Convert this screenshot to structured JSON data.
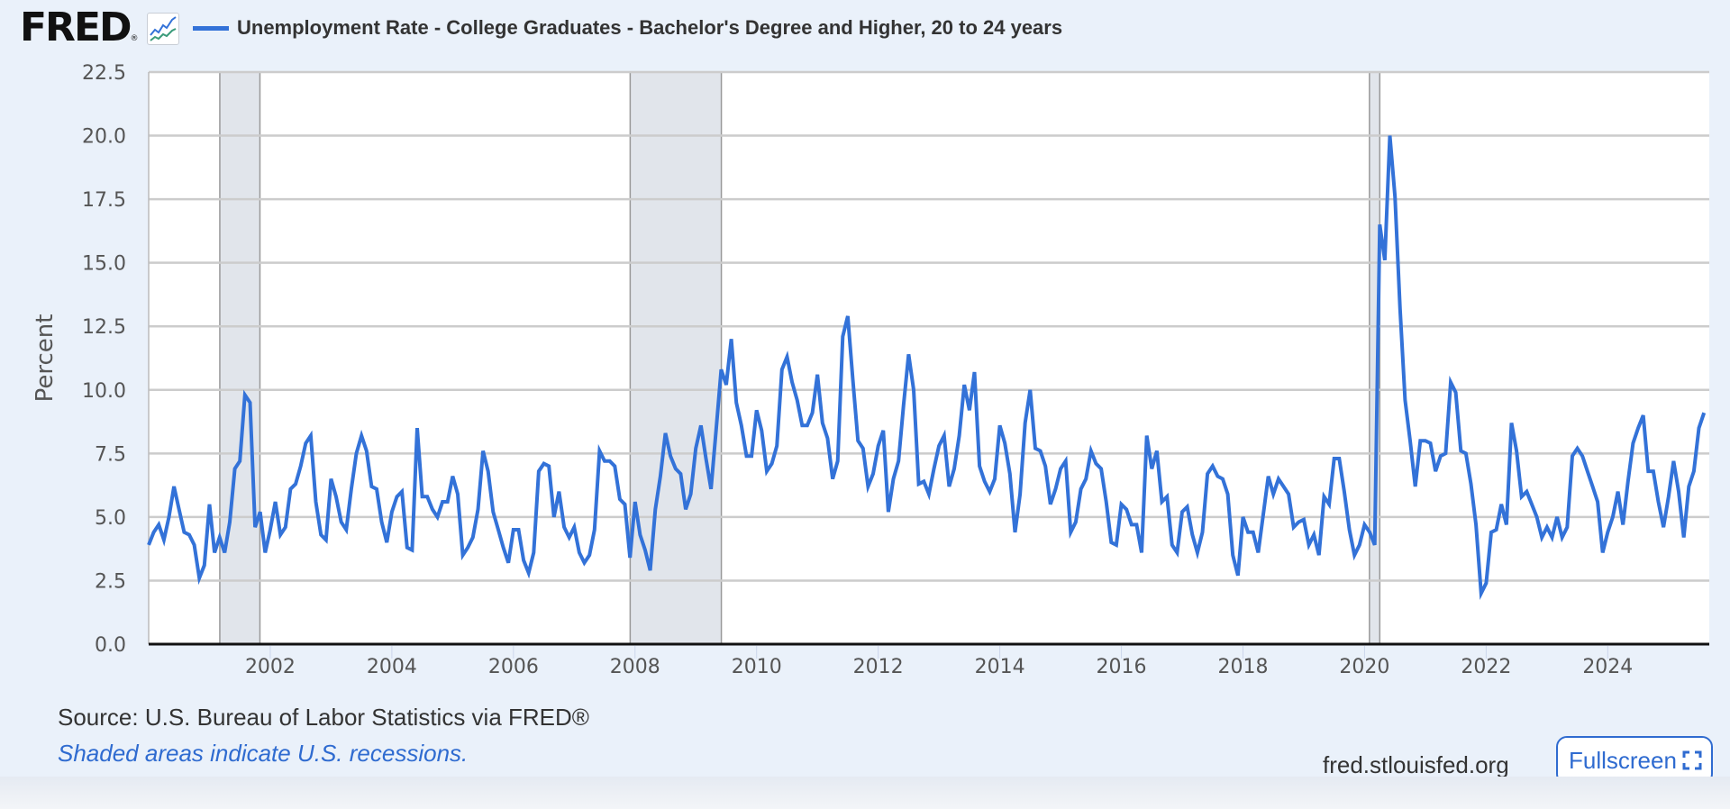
{
  "header": {
    "logo_text": "FRED",
    "logo_mark": "®",
    "logo_icon": "line-chart-icon",
    "legend_label": "Unemployment Rate - College Graduates - Bachelor's Degree and Higher, 20 to 24 years",
    "legend_color": "#3372d8"
  },
  "footer": {
    "source": "Source: U.S. Bureau of Labor Statistics via FRED®",
    "note": "Shaded areas indicate U.S. recessions.",
    "site": "fred.stlouisfed.org",
    "fullscreen_label": "Fullscreen",
    "fullscreen_icon": "expand-icon"
  },
  "chart_data": {
    "type": "line",
    "title": "Unemployment Rate - College Graduates - Bachelor's Degree and Higher, 20 to 24 years",
    "xlabel": "",
    "ylabel": "Percent",
    "ylim": [
      0,
      22.5
    ],
    "yticks": [
      "0.0",
      "2.5",
      "5.0",
      "7.5",
      "10.0",
      "12.5",
      "15.0",
      "17.5",
      "20.0",
      "22.5"
    ],
    "xticks": [
      "2002",
      "2004",
      "2006",
      "2008",
      "2010",
      "2012",
      "2014",
      "2016",
      "2018",
      "2020",
      "2022",
      "2024"
    ],
    "xrange": [
      2000.0,
      2025.67
    ],
    "grid": true,
    "legend_position": "top",
    "frequency": "monthly",
    "start": "2000-01",
    "recessions": [
      [
        2001.17,
        2001.83
      ],
      [
        2007.92,
        2009.42
      ],
      [
        2020.08,
        2020.25
      ]
    ],
    "series": [
      {
        "name": "Unemployment Rate - College Graduates - Bachelor's Degree and Higher, 20 to 24 years",
        "color": "#3372d8",
        "values": [
          3.9,
          4.4,
          4.7,
          4.1,
          5.0,
          6.2,
          5.3,
          4.4,
          4.3,
          3.9,
          2.6,
          3.1,
          5.5,
          3.6,
          4.2,
          3.6,
          4.8,
          6.9,
          7.2,
          9.8,
          9.5,
          4.6,
          5.2,
          3.6,
          4.5,
          5.6,
          4.3,
          4.6,
          6.1,
          6.3,
          7.0,
          7.9,
          8.2,
          5.6,
          4.3,
          4.1,
          6.5,
          5.8,
          4.8,
          4.5,
          6.1,
          7.5,
          8.2,
          7.6,
          6.2,
          6.1,
          4.8,
          4.0,
          5.2,
          5.8,
          6.0,
          3.8,
          3.7,
          8.5,
          5.8,
          5.8,
          5.3,
          5.0,
          5.6,
          5.6,
          6.6,
          5.9,
          3.5,
          3.8,
          4.2,
          5.3,
          7.6,
          6.8,
          5.2,
          4.5,
          3.8,
          3.2,
          4.5,
          4.5,
          3.3,
          2.8,
          3.6,
          6.8,
          7.1,
          7.0,
          5.0,
          6.0,
          4.6,
          4.2,
          4.6,
          3.6,
          3.2,
          3.5,
          4.5,
          7.6,
          7.2,
          7.2,
          7.0,
          5.7,
          5.5,
          3.4,
          5.6,
          4.3,
          3.7,
          2.9,
          5.3,
          6.6,
          8.3,
          7.4,
          6.9,
          6.7,
          5.3,
          5.9,
          7.7,
          8.6,
          7.3,
          6.1,
          8.4,
          10.8,
          10.2,
          12.0,
          9.5,
          8.6,
          7.4,
          7.4,
          9.2,
          8.4,
          6.8,
          7.1,
          7.8,
          10.8,
          11.3,
          10.3,
          9.6,
          8.6,
          8.6,
          9.1,
          10.6,
          8.7,
          8.1,
          6.5,
          7.2,
          12.1,
          12.9,
          10.4,
          8.0,
          7.7,
          6.2,
          6.7,
          7.8,
          8.4,
          5.2,
          6.5,
          7.2,
          9.4,
          11.4,
          10.0,
          6.3,
          6.4,
          5.9,
          6.9,
          7.8,
          8.2,
          6.2,
          6.9,
          8.2,
          10.2,
          9.2,
          10.7,
          7.0,
          6.4,
          6.0,
          6.5,
          8.6,
          7.9,
          6.7,
          4.4,
          5.9,
          8.7,
          10.0,
          7.7,
          7.6,
          7.0,
          5.5,
          6.1,
          6.9,
          7.2,
          4.4,
          4.8,
          6.1,
          6.5,
          7.6,
          7.1,
          6.9,
          5.6,
          4.0,
          3.9,
          5.5,
          5.3,
          4.7,
          4.7,
          3.6,
          8.2,
          6.9,
          7.6,
          5.6,
          5.8,
          3.9,
          3.6,
          5.2,
          5.4,
          4.3,
          3.6,
          4.4,
          6.7,
          7.0,
          6.6,
          6.5,
          5.9,
          3.5,
          2.7,
          5.0,
          4.4,
          4.4,
          3.6,
          5.1,
          6.6,
          5.9,
          6.5,
          6.2,
          5.9,
          4.6,
          4.8,
          4.9,
          3.9,
          4.3,
          3.5,
          5.8,
          5.5,
          7.3,
          7.3,
          6.0,
          4.5,
          3.5,
          3.9,
          4.7,
          4.4,
          3.9,
          16.5,
          15.1,
          20.0,
          17.6,
          13.2,
          9.6,
          8.0,
          6.2,
          8.0,
          8.0,
          7.9,
          6.8,
          7.4,
          7.5,
          10.3,
          9.9,
          7.6,
          7.5,
          6.3,
          4.7,
          2.0,
          2.4,
          4.4,
          4.5,
          5.5,
          4.7,
          8.7,
          7.6,
          5.8,
          6.0,
          5.5,
          5.0,
          4.2,
          4.6,
          4.2,
          5.0,
          4.2,
          4.6,
          7.4,
          7.7,
          7.4,
          6.8,
          6.2,
          5.6,
          3.6,
          4.4,
          5.0,
          6.0,
          4.7,
          6.4,
          7.9,
          8.5,
          9.0,
          6.8,
          6.8,
          5.6,
          4.6,
          5.8,
          7.2,
          6.0,
          4.2,
          6.2,
          6.8,
          8.5,
          9.1
        ]
      }
    ]
  }
}
